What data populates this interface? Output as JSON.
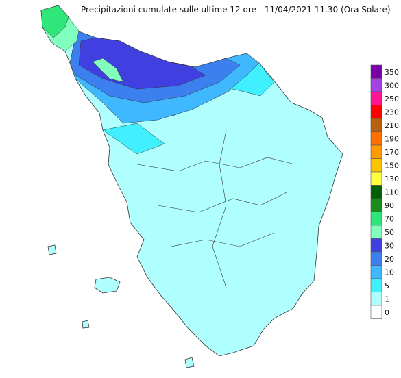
{
  "title": "Precipitazioni cumulate sulle ultime 12 ore - 11/04/2021 11.30 (Ora Solare)",
  "legend": [
    {
      "value": 350,
      "color": "#7b00a8"
    },
    {
      "value": 300,
      "color": "#a340e6"
    },
    {
      "value": 250,
      "color": "#ff1493"
    },
    {
      "value": 230,
      "color": "#ff0000"
    },
    {
      "value": 210,
      "color": "#b8600a"
    },
    {
      "value": 190,
      "color": "#ff7000"
    },
    {
      "value": 170,
      "color": "#ff9a00"
    },
    {
      "value": 150,
      "color": "#ffc400"
    },
    {
      "value": 130,
      "color": "#ffff40"
    },
    {
      "value": 110,
      "color": "#005f00"
    },
    {
      "value": 90,
      "color": "#1a8c1a"
    },
    {
      "value": 70,
      "color": "#2ee67a"
    },
    {
      "value": 50,
      "color": "#80ffbf"
    },
    {
      "value": 30,
      "color": "#4040e0"
    },
    {
      "value": 20,
      "color": "#3c80f0"
    },
    {
      "value": 10,
      "color": "#40b8ff"
    },
    {
      "value": 5,
      "color": "#40f0ff"
    },
    {
      "value": 1,
      "color": "#b0ffff"
    },
    {
      "value": 0,
      "color": "#ffffff"
    }
  ]
}
